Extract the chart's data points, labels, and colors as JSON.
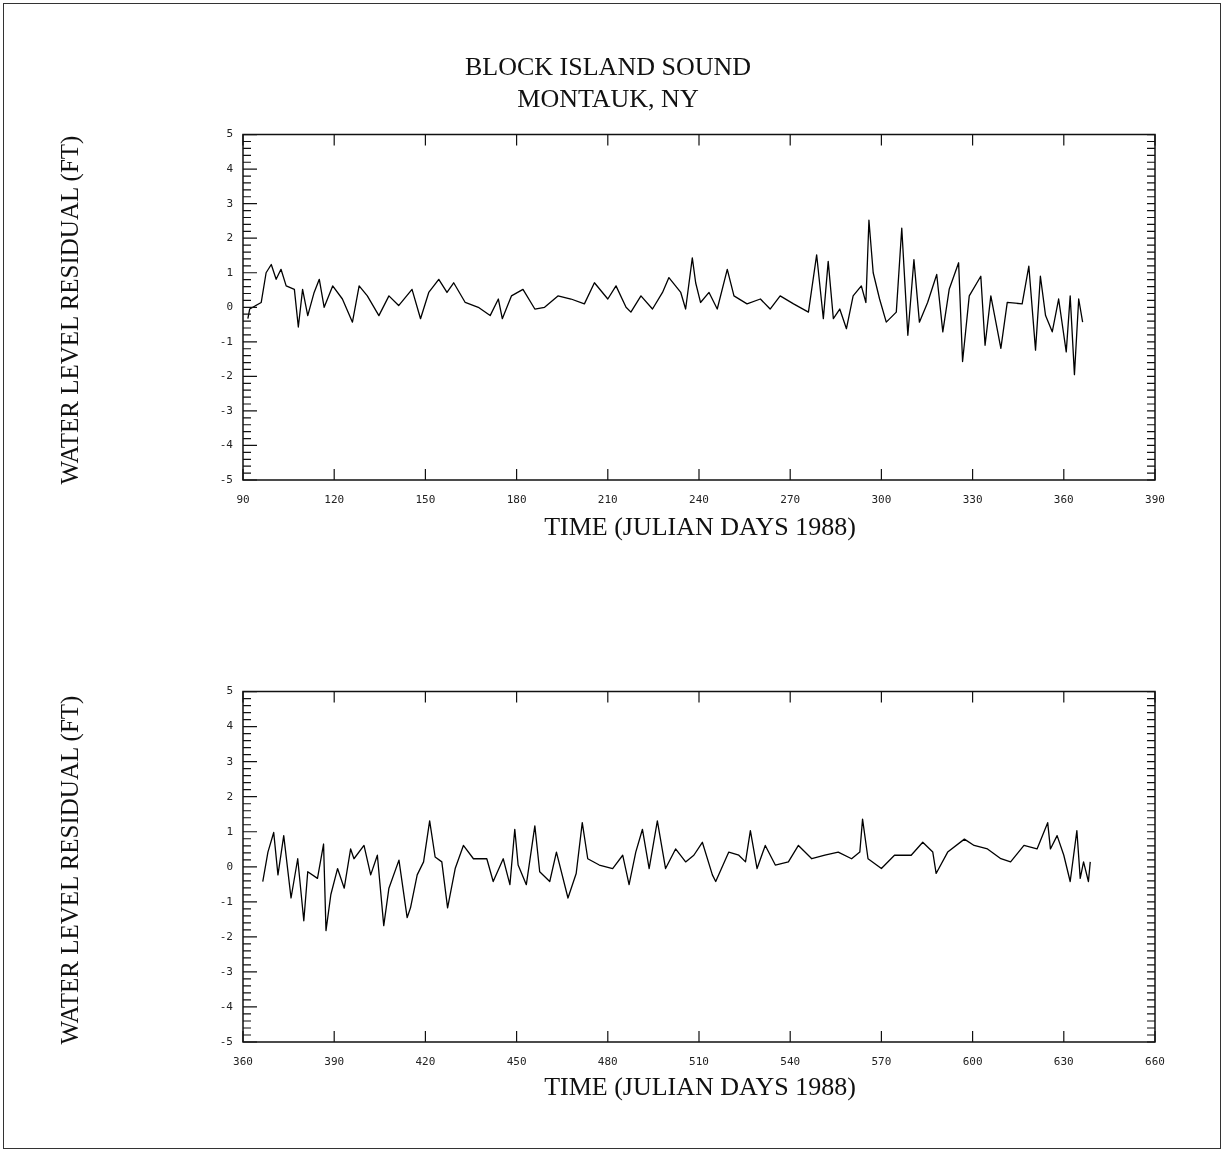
{
  "chart_data": [
    {
      "type": "line",
      "title": "BLOCK ISLAND SOUND",
      "subtitle": "MONTAUK, NY",
      "xlabel": "TIME (JULIAN DAYS 1988)",
      "ylabel": "WATER LEVEL RESIDUAL (FT)",
      "color": "#000000",
      "line_style": "solid",
      "grid": false,
      "legend": false,
      "marker": "none",
      "xlim": [
        90,
        390
      ],
      "xticks": [
        90,
        120,
        150,
        180,
        210,
        240,
        270,
        300,
        330,
        360,
        390
      ],
      "ylim": [
        -5,
        5
      ],
      "yticks": [
        -5,
        -4,
        -3,
        -2,
        -1,
        0,
        1,
        2,
        3,
        4,
        5
      ],
      "x": [
        91.6,
        92.2,
        96,
        97.6,
        99.3,
        100.9,
        102.5,
        104.2,
        106.9,
        108.2,
        109.6,
        111.3,
        113.4,
        115.1,
        116.7,
        119.5,
        122.7,
        126,
        128.2,
        130.9,
        134.7,
        138,
        141.2,
        145.6,
        148.4,
        151.1,
        154.4,
        157.1,
        159.3,
        163.1,
        167.4,
        171.3,
        174,
        175.3,
        178.3,
        182.1,
        186,
        189.2,
        193.6,
        197.9,
        202.3,
        205.6,
        210,
        212.7,
        216,
        217.6,
        220.9,
        224.7,
        228,
        230.1,
        234,
        235.6,
        237.8,
        238.9,
        240.5,
        243.3,
        246,
        249.3,
        251.5,
        255.8,
        260.2,
        263.4,
        266.7,
        271.1,
        276,
        278.7,
        280.9,
        282.5,
        284.2,
        286.3,
        288.5,
        290.7,
        293.4,
        294.9,
        295.9,
        297.3,
        299.4,
        301.6,
        304.9,
        306.7,
        308.7,
        310.7,
        312.5,
        315.2,
        318.2,
        320.2,
        322.3,
        325.4,
        326.7,
        328.9,
        332.7,
        334.1,
        336,
        339.3,
        341.4,
        346.3,
        348.5,
        350.7,
        352.3,
        354,
        356.2,
        358.3,
        360.8,
        362.1,
        363.5,
        364.9,
        366.2
      ],
      "values": [
        -0.33,
        -0.05,
        0.14,
        1.0,
        1.24,
        0.81,
        1.1,
        0.62,
        0.52,
        -0.57,
        0.52,
        -0.24,
        0.43,
        0.81,
        0,
        0.62,
        0.24,
        -0.43,
        0.62,
        0.33,
        -0.24,
        0.33,
        0.05,
        0.52,
        -0.33,
        0.43,
        0.81,
        0.43,
        0.71,
        0.14,
        0,
        -0.24,
        0.24,
        -0.33,
        0.33,
        0.52,
        -0.05,
        0,
        0.33,
        0.24,
        0.1,
        0.71,
        0.24,
        0.62,
        0,
        -0.14,
        0.33,
        -0.05,
        0.43,
        0.86,
        0.43,
        -0.05,
        1.43,
        0.71,
        0.14,
        0.43,
        -0.05,
        1.1,
        0.33,
        0.1,
        0.24,
        -0.05,
        0.33,
        0.1,
        -0.14,
        1.52,
        -0.33,
        1.33,
        -0.33,
        -0.05,
        -0.62,
        0.33,
        0.62,
        0.14,
        2.52,
        1.0,
        0.24,
        -0.43,
        -0.14,
        2.29,
        -0.81,
        1.38,
        -0.43,
        0.14,
        0.95,
        -0.71,
        0.52,
        1.29,
        -1.57,
        0.33,
        0.9,
        -1.1,
        0.33,
        -1.19,
        0.14,
        0.1,
        1.19,
        -1.24,
        0.9,
        -0.24,
        -0.71,
        0.24,
        -1.29,
        0.33,
        -1.95,
        0.24,
        -0.43
      ]
    },
    {
      "type": "line",
      "xlabel": "TIME (JULIAN DAYS 1988)",
      "ylabel": "WATER LEVEL RESIDUAL (FT)",
      "color": "#000000",
      "line_style": "solid",
      "grid": false,
      "legend": false,
      "marker": "none",
      "xlim": [
        360,
        660
      ],
      "xticks": [
        360,
        390,
        420,
        450,
        480,
        510,
        540,
        570,
        600,
        630,
        660
      ],
      "ylim": [
        -5,
        5
      ],
      "yticks": [
        -5,
        -4,
        -3,
        -2,
        -1,
        0,
        1,
        2,
        3,
        4,
        5
      ],
      "x": [
        366.5,
        368.2,
        370.1,
        371.5,
        373.4,
        375.8,
        378,
        380,
        381.3,
        384.5,
        386.5,
        387.3,
        388.9,
        391.1,
        393.3,
        395.4,
        396.5,
        399.8,
        402,
        404.2,
        406.3,
        408,
        411.3,
        414,
        415.1,
        417.3,
        419.4,
        421.4,
        423.2,
        425.4,
        427.3,
        429.8,
        432.5,
        435.8,
        440.2,
        442.3,
        445.6,
        447.8,
        449.4,
        450.5,
        453.2,
        456,
        457.6,
        460.9,
        463.1,
        466.9,
        469.6,
        471.6,
        473.4,
        477.2,
        481.6,
        484.9,
        487,
        489.2,
        491.4,
        493.6,
        496.3,
        499,
        502.3,
        505.6,
        508.3,
        511.1,
        514.4,
        515.5,
        519.8,
        523.1,
        525.3,
        526.9,
        529.1,
        531.8,
        535.1,
        539.4,
        542.7,
        547.1,
        551.4,
        555.8,
        560.2,
        562.9,
        563.8,
        565.6,
        570,
        574.3,
        579.8,
        583.6,
        586.9,
        588,
        591.8,
        597.3,
        600.5,
        604.9,
        609.3,
        612.5,
        616.9,
        621.2,
        624.7,
        625.6,
        627.8,
        630,
        632.1,
        634.3,
        635.4,
        636.5,
        638.1,
        638.7
      ],
      "values": [
        -0.42,
        0.42,
        0.98,
        -0.23,
        0.89,
        -0.89,
        0.23,
        -1.54,
        -0.14,
        -0.33,
        0.65,
        -1.82,
        -0.79,
        -0.05,
        -0.61,
        0.51,
        0.23,
        0.61,
        -0.23,
        0.33,
        -1.68,
        -0.61,
        0.19,
        -1.45,
        -1.17,
        -0.23,
        0.14,
        1.31,
        0.28,
        0.14,
        -1.17,
        -0.05,
        0.61,
        0.23,
        0.23,
        -0.42,
        0.23,
        -0.51,
        1.07,
        0.05,
        -0.51,
        1.17,
        -0.14,
        -0.42,
        0.42,
        -0.89,
        -0.19,
        1.26,
        0.23,
        0.05,
        -0.05,
        0.33,
        -0.51,
        0.42,
        1.07,
        -0.05,
        1.31,
        -0.05,
        0.51,
        0.14,
        0.33,
        0.7,
        -0.23,
        -0.42,
        0.42,
        0.33,
        0.14,
        1.03,
        -0.05,
        0.61,
        0.05,
        0.14,
        0.61,
        0.23,
        0.33,
        0.42,
        0.23,
        0.42,
        1.36,
        0.23,
        -0.05,
        0.33,
        0.33,
        0.7,
        0.42,
        -0.19,
        0.42,
        0.79,
        0.61,
        0.51,
        0.23,
        0.14,
        0.61,
        0.51,
        1.26,
        0.51,
        0.89,
        0.33,
        -0.42,
        1.03,
        -0.33,
        0.14,
        -0.42,
        0.14
      ]
    }
  ]
}
